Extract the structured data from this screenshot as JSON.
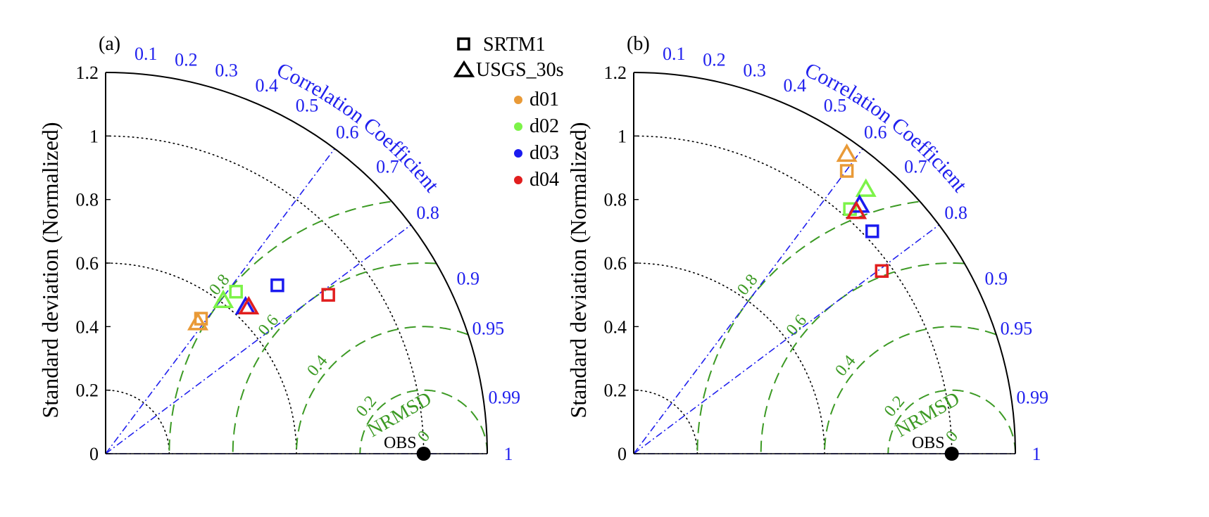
{
  "legend": {
    "markers": [
      {
        "symbol": "square",
        "label": "SRTM1"
      },
      {
        "symbol": "triangle",
        "label": "USGS_30s"
      }
    ],
    "domains": [
      {
        "label": "d01",
        "color": "#E99A37"
      },
      {
        "label": "d02",
        "color": "#7CF348"
      },
      {
        "label": "d03",
        "color": "#1B1BEF"
      },
      {
        "label": "d04",
        "color": "#E11E1E"
      }
    ]
  },
  "colors": {
    "correlation": "#2020EE",
    "nrmsd": "#3C9A24",
    "std_grid": "#000000",
    "obs": "#000000"
  },
  "chart_data": [
    {
      "type": "scatter",
      "panel_label": "(a)",
      "ylabel": "Standard deviation (Normalized)",
      "correlation_label": "Correlation Coefficient",
      "rmsd_label": "NRMSD",
      "obs_label": "OBS",
      "std_range": [
        0,
        1.2
      ],
      "std_ticks": [
        "0",
        "0.2",
        "0.4",
        "0.6",
        "0.8",
        "1",
        "1.2"
      ],
      "correlation_ticks": [
        "0.1",
        "0.2",
        "0.3",
        "0.4",
        "0.5",
        "0.6",
        "0.7",
        "0.8",
        "0.9",
        "0.95",
        "0.99",
        "1"
      ],
      "correlation_lines": [
        0.6,
        0.8
      ],
      "rmsd_contours": [
        "0",
        "0.2",
        "0.4",
        "0.6",
        "0.8"
      ],
      "obs": {
        "x": 1.0,
        "y": 0.0
      },
      "series": [
        {
          "symbol": "square",
          "domain": "d01",
          "x": 0.3,
          "y": 0.425
        },
        {
          "symbol": "square",
          "domain": "d02",
          "x": 0.41,
          "y": 0.51
        },
        {
          "symbol": "square",
          "domain": "d03",
          "x": 0.54,
          "y": 0.53
        },
        {
          "symbol": "square",
          "domain": "d04",
          "x": 0.7,
          "y": 0.5
        },
        {
          "symbol": "triangle",
          "domain": "d01",
          "x": 0.29,
          "y": 0.41
        },
        {
          "symbol": "triangle",
          "domain": "d02",
          "x": 0.37,
          "y": 0.48
        },
        {
          "symbol": "triangle",
          "domain": "d03",
          "x": 0.44,
          "y": 0.46
        },
        {
          "symbol": "triangle",
          "domain": "d04",
          "x": 0.45,
          "y": 0.46
        }
      ]
    },
    {
      "type": "scatter",
      "panel_label": "(b)",
      "ylabel": "Standard deviation (Normalized)",
      "correlation_label": "Correlation Coefficient",
      "rmsd_label": "NRMSD",
      "obs_label": "OBS",
      "std_range": [
        0,
        1.2
      ],
      "std_ticks": [
        "0",
        "0.2",
        "0.4",
        "0.6",
        "0.8",
        "1",
        "1.2"
      ],
      "correlation_ticks": [
        "0.1",
        "0.2",
        "0.3",
        "0.4",
        "0.5",
        "0.6",
        "0.7",
        "0.8",
        "0.9",
        "0.95",
        "0.99",
        "1"
      ],
      "correlation_lines": [
        0.6,
        0.8
      ],
      "rmsd_contours": [
        "0",
        "0.2",
        "0.4",
        "0.6",
        "0.8"
      ],
      "obs": {
        "x": 1.0,
        "y": 0.0
      },
      "series": [
        {
          "symbol": "square",
          "domain": "d01",
          "x": 0.67,
          "y": 0.89
        },
        {
          "symbol": "square",
          "domain": "d02",
          "x": 0.68,
          "y": 0.77
        },
        {
          "symbol": "square",
          "domain": "d03",
          "x": 0.75,
          "y": 0.7
        },
        {
          "symbol": "square",
          "domain": "d04",
          "x": 0.78,
          "y": 0.575
        },
        {
          "symbol": "triangle",
          "domain": "d01",
          "x": 0.67,
          "y": 0.94
        },
        {
          "symbol": "triangle",
          "domain": "d02",
          "x": 0.73,
          "y": 0.83
        },
        {
          "symbol": "triangle",
          "domain": "d03",
          "x": 0.71,
          "y": 0.78
        },
        {
          "symbol": "triangle",
          "domain": "d04",
          "x": 0.7,
          "y": 0.76
        }
      ]
    }
  ]
}
